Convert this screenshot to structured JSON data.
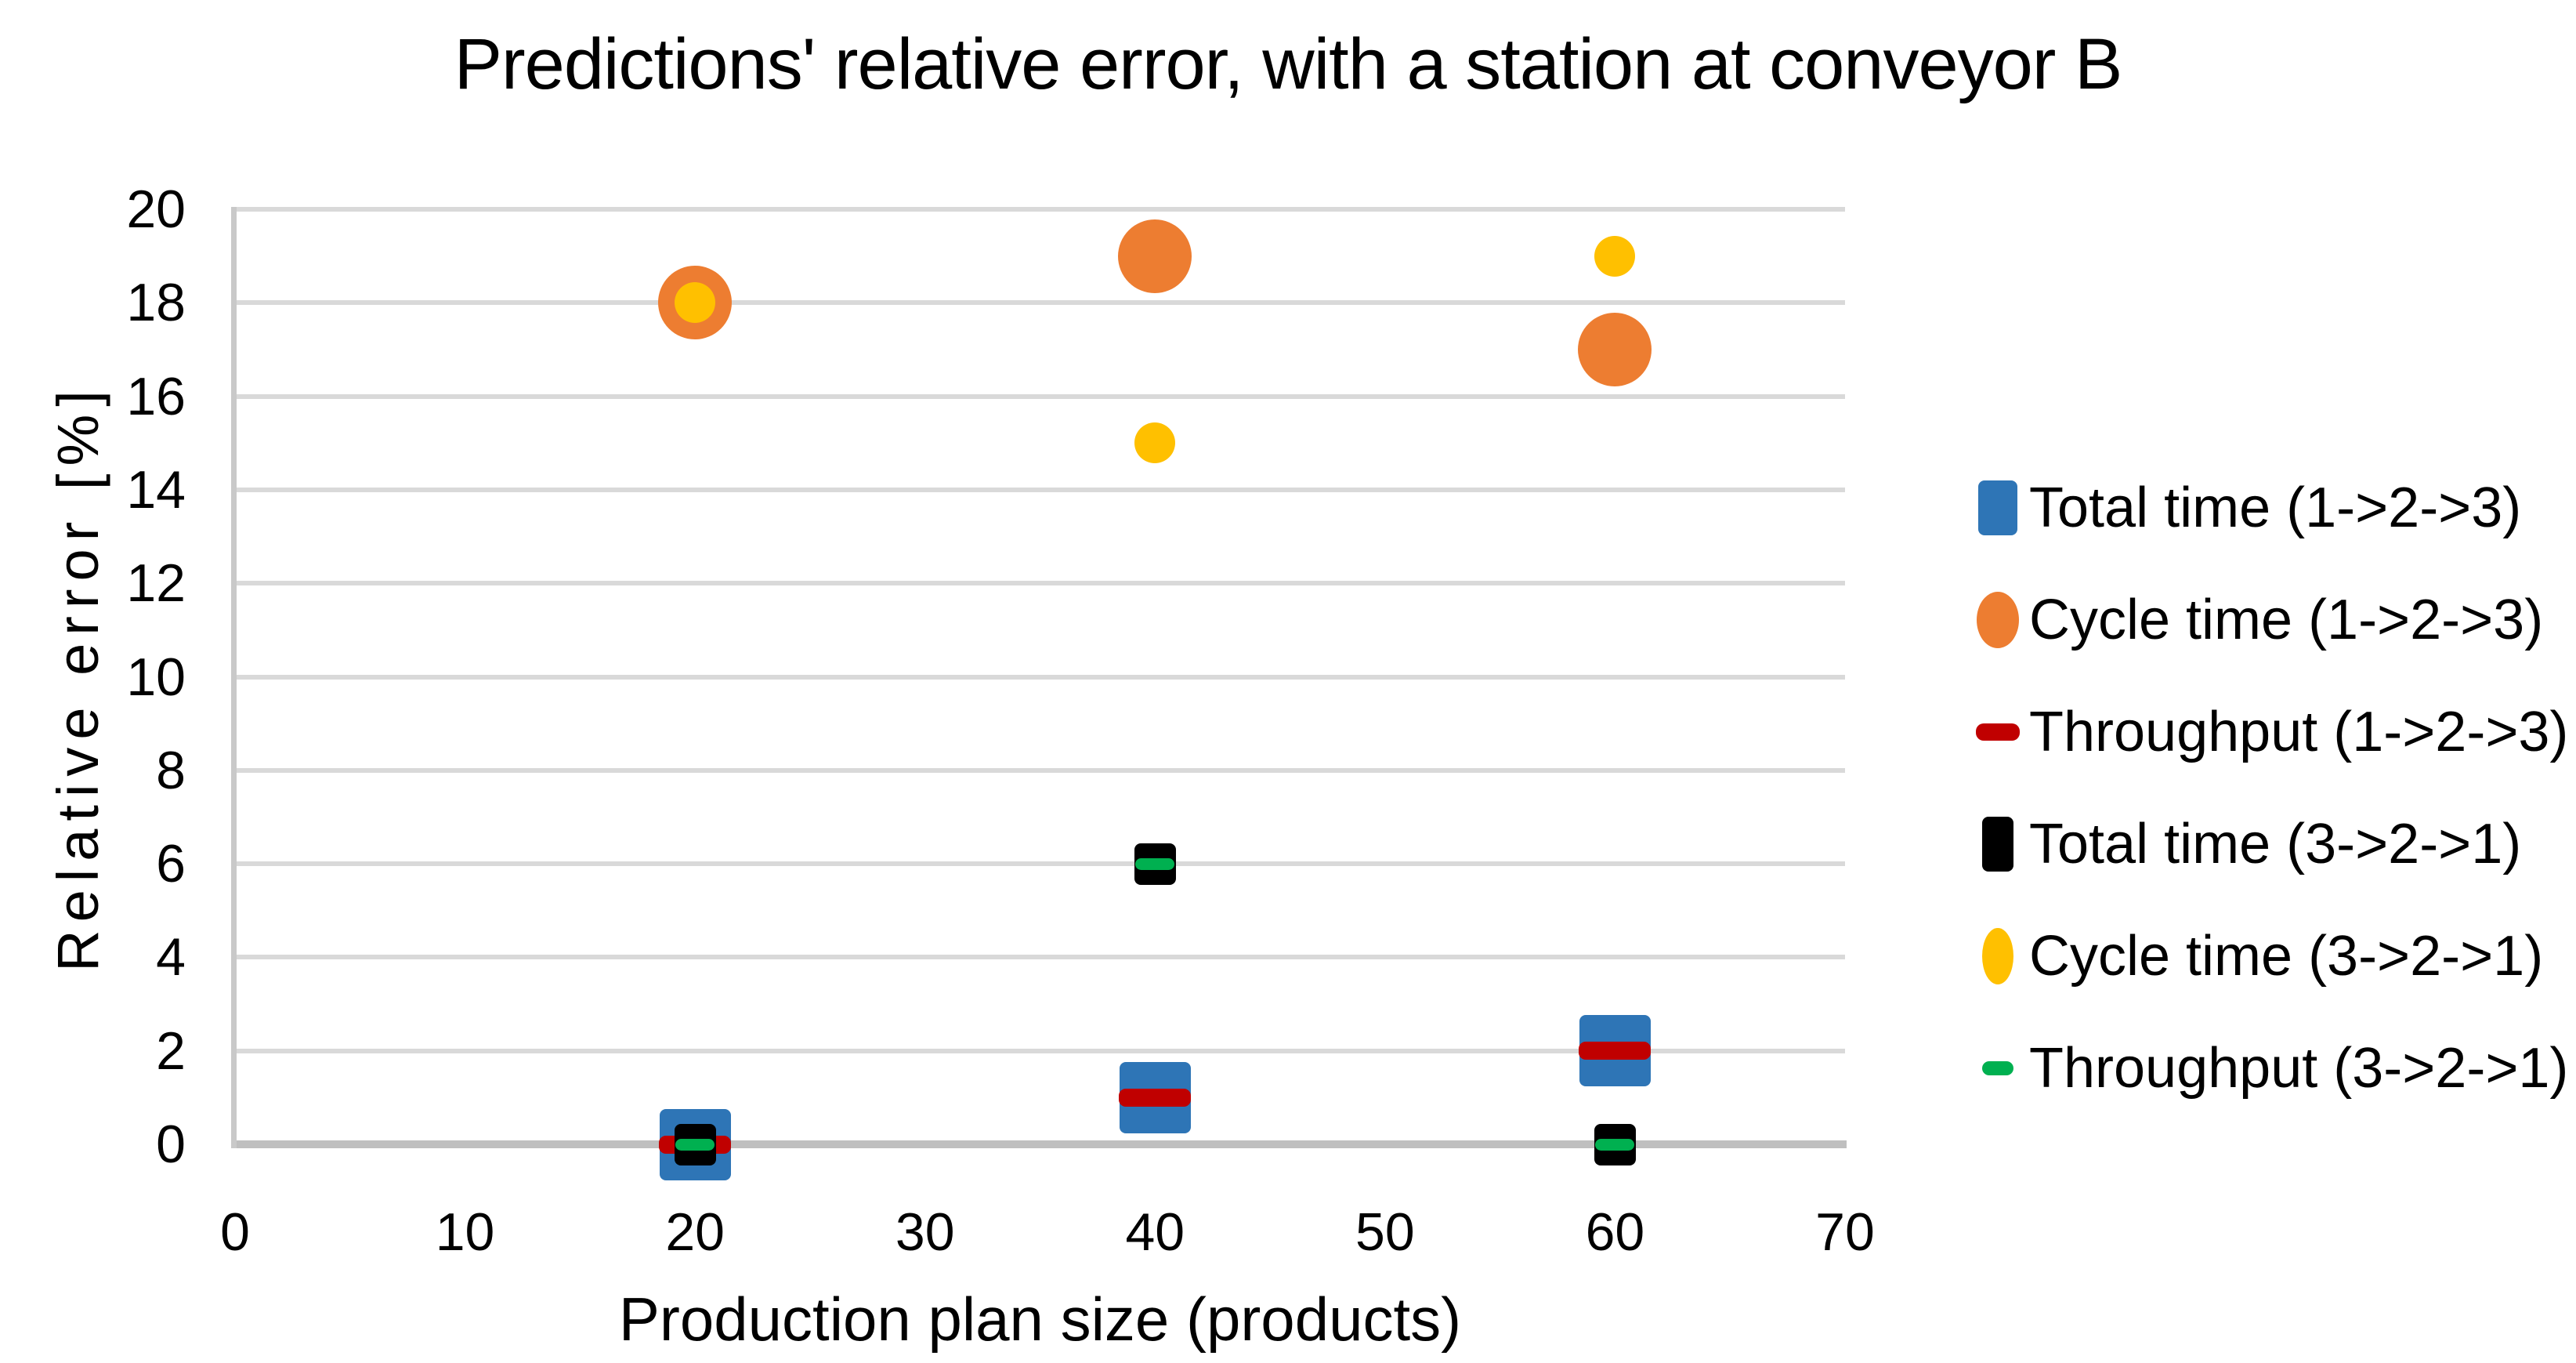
{
  "title": "Predictions' relative error, with a station at conveyor B",
  "chart_data": {
    "type": "scatter",
    "title": "Predictions' relative error, with a station at conveyor B",
    "xlabel": "Production plan size (products)",
    "ylabel": "Relative error [%]",
    "xlim": [
      0,
      70
    ],
    "ylim": [
      0,
      20
    ],
    "x_ticks": [
      0,
      10,
      20,
      30,
      40,
      50,
      60,
      70
    ],
    "y_ticks": [
      0,
      2,
      4,
      6,
      8,
      10,
      12,
      14,
      16,
      18,
      20
    ],
    "grid": "horizontal",
    "legend_position": "right",
    "series": [
      {
        "name": "Total time (1->2->3)",
        "marker": "square",
        "color": "#2E75B6",
        "marker_px": {
          "w": 91,
          "h": 91
        },
        "points": [
          {
            "x": 20,
            "y": 0
          },
          {
            "x": 40,
            "y": 1
          },
          {
            "x": 60,
            "y": 2
          }
        ]
      },
      {
        "name": "Cycle time (1->2->3)",
        "marker": "circle",
        "color": "#ED7D31",
        "marker_px": {
          "w": 94,
          "h": 94
        },
        "points": [
          {
            "x": 20,
            "y": 18
          },
          {
            "x": 40,
            "y": 19
          },
          {
            "x": 60,
            "y": 17
          }
        ]
      },
      {
        "name": "Throughput (1->2->3)",
        "marker": "dash",
        "color": "#C00000",
        "marker_px": {
          "w": 92,
          "h": 23
        },
        "points": [
          {
            "x": 20,
            "y": 0
          },
          {
            "x": 40,
            "y": 1
          },
          {
            "x": 60,
            "y": 2
          }
        ]
      },
      {
        "name": "Total time (3->2->1)",
        "marker": "square",
        "color": "#000000",
        "marker_px": {
          "w": 53,
          "h": 53
        },
        "points": [
          {
            "x": 20,
            "y": 0
          },
          {
            "x": 40,
            "y": 6
          },
          {
            "x": 60,
            "y": 0
          }
        ]
      },
      {
        "name": "Cycle time (3->2->1)",
        "marker": "circle",
        "color": "#FFC000",
        "marker_px": {
          "w": 52,
          "h": 52
        },
        "points": [
          {
            "x": 20,
            "y": 18
          },
          {
            "x": 40,
            "y": 15
          },
          {
            "x": 60,
            "y": 19
          }
        ]
      },
      {
        "name": "Throughput (3->2->1)",
        "marker": "dash",
        "color": "#00B050",
        "marker_px": {
          "w": 50,
          "h": 15
        },
        "points": [
          {
            "x": 20,
            "y": 0
          },
          {
            "x": 40,
            "y": 6
          },
          {
            "x": 60,
            "y": 0
          }
        ]
      }
    ],
    "style": {
      "background": "#ffffff",
      "gridline_color": "#d9d9d9",
      "zero_axis_color": "#bfbfbf",
      "vertical_axis_color": "#c9c9c9",
      "text_color": "#000000"
    }
  }
}
